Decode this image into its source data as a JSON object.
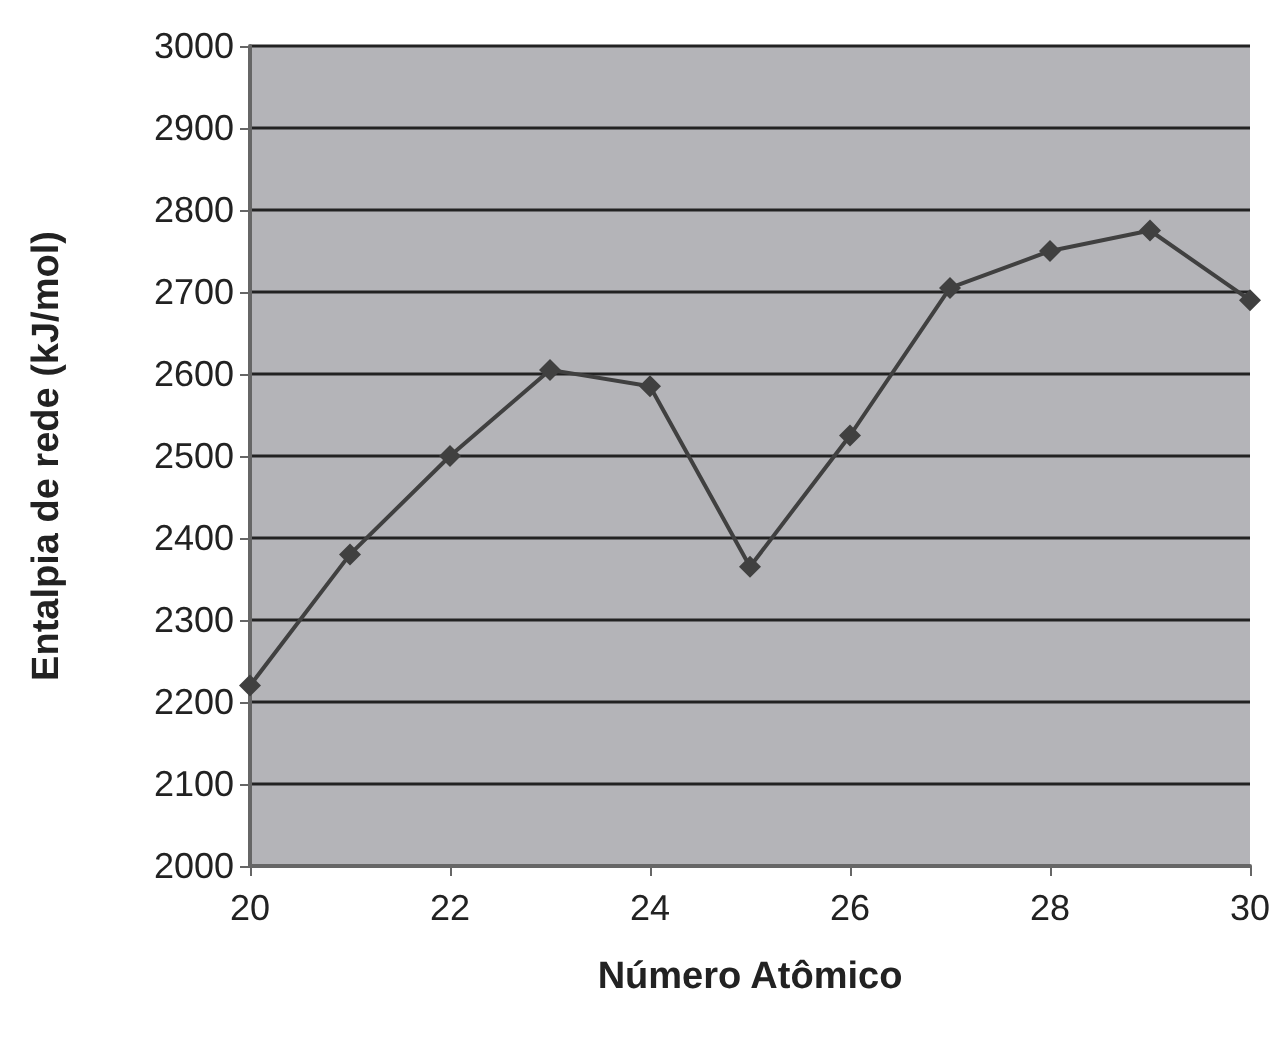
{
  "chart_data": {
    "type": "line",
    "xlabel": "Número Atômico",
    "ylabel": "Entalpia de rede (kJ/mol)",
    "x": [
      20,
      21,
      22,
      23,
      24,
      25,
      26,
      27,
      28,
      29,
      30
    ],
    "series": [
      {
        "color": "#404040",
        "values": [
          2220,
          2380,
          2500,
          2605,
          2585,
          2365,
          2525,
          2705,
          2750,
          2775,
          2690
        ]
      }
    ],
    "xlim": [
      20,
      30
    ],
    "xticks": [
      20,
      22,
      24,
      26,
      28,
      30
    ],
    "ylim": [
      2000,
      3000
    ],
    "yticks": [
      2000,
      2100,
      2200,
      2300,
      2400,
      2500,
      2600,
      2700,
      2800,
      2900,
      3000
    ],
    "grid": "y",
    "marker": "diamond",
    "line_style": "solid"
  }
}
